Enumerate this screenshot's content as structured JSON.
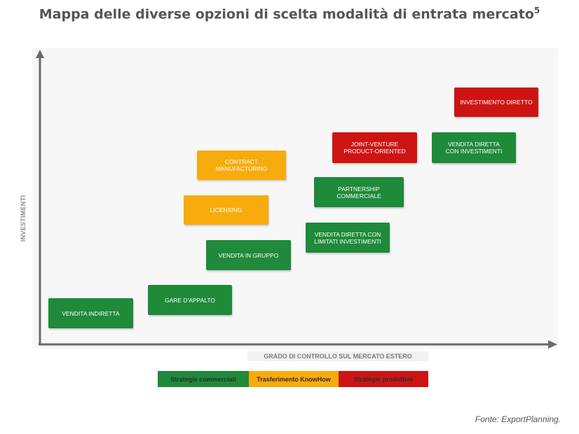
{
  "title": "Mappa delle diverse opzioni di scelta modalità di entrata mercato",
  "title_superscript": "5",
  "y_axis_label": "INVESTIMENTI",
  "x_axis_label": "GRADO DI CONTROLLO SUL MERCATO ESTERO",
  "colors": {
    "commerciali": "#1e8a3a",
    "knowhow": "#f8ab0d",
    "produttive": "#cc1512",
    "axis": "#6a6a6a"
  },
  "boxes": [
    {
      "label": "VENDITA INDIRETTA",
      "category": "commerciali"
    },
    {
      "label": "GARE D'APPALTO",
      "category": "commerciali"
    },
    {
      "label": "VENDITA IN GRUPPO",
      "category": "commerciali"
    },
    {
      "label": "LICENSING",
      "category": "knowhow"
    },
    {
      "label": "CONTRACT MANUFACTURING",
      "category": "knowhow"
    },
    {
      "label": "VENDITA DIRETTA CON\nLIMITATI INVESTIMENTI",
      "category": "commerciali"
    },
    {
      "label": "PARTNERSHIP COMMERCIALE",
      "category": "commerciali"
    },
    {
      "label": "JOINT-VENTURE\nPRODUCT-ORIENTED",
      "category": "produttive"
    },
    {
      "label": "VENDITA DIRETTA\nCON INVESTIMENTI",
      "category": "commerciali"
    },
    {
      "label": "INVESTIMENTO DIRETTO",
      "category": "produttive"
    }
  ],
  "legend": [
    {
      "label": "Strategie commerciali",
      "category": "commerciali"
    },
    {
      "label": "Trasferimento KnowHow",
      "category": "knowhow"
    },
    {
      "label": "Strategie produttive",
      "category": "produttive"
    }
  ],
  "source": "Fonte: ExportPlanning."
}
